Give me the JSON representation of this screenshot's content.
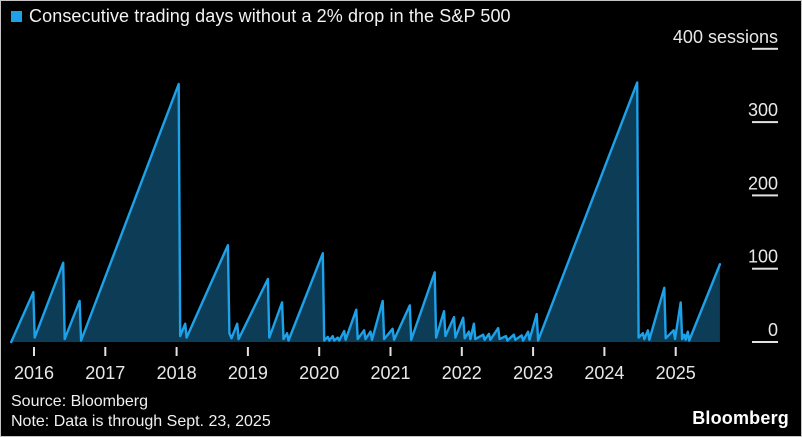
{
  "frame": {
    "background": "#000000",
    "border_color": "#c4c4c4"
  },
  "legend": {
    "marker_color": "#1da1e8",
    "label": "Consecutive trading days without a 2% drop in the S&P 500"
  },
  "source": {
    "line1": "Source: Bloomberg",
    "line2": "Note: Data is through Sept. 23, 2025"
  },
  "branding": {
    "logo": "Bloomberg"
  },
  "chart_data": {
    "type": "area",
    "title": "Consecutive trading days without a 2% drop in the S&P 500",
    "xlabel": "",
    "ylabel": "sessions",
    "xlim": [
      2015.67,
      2025.65
    ],
    "ylim": [
      0,
      400
    ],
    "grid": false,
    "legend_position": "top-left",
    "line_color": "#1da1e8",
    "fill_color": "#0d3c57",
    "tick_color": "#e2e2e2",
    "x_ticks": [
      2016,
      2017,
      2018,
      2019,
      2020,
      2021,
      2022,
      2023,
      2024,
      2025
    ],
    "y_ticks": [
      {
        "value": 0,
        "label": "0"
      },
      {
        "value": 100,
        "label": "100"
      },
      {
        "value": 200,
        "label": "200"
      },
      {
        "value": 300,
        "label": "300"
      },
      {
        "value": 400,
        "label": "400 sessions"
      }
    ],
    "series": [
      {
        "name": "Consecutive trading days without a 2% drop in the S&P 500",
        "units": "sessions",
        "points": [
          [
            2015.68,
            0
          ],
          [
            2015.99,
            68
          ],
          [
            2016.01,
            6
          ],
          [
            2016.41,
            108
          ],
          [
            2016.43,
            4
          ],
          [
            2016.64,
            56
          ],
          [
            2016.66,
            2
          ],
          [
            2018.03,
            352
          ],
          [
            2018.05,
            8
          ],
          [
            2018.12,
            25
          ],
          [
            2018.14,
            6
          ],
          [
            2018.72,
            132
          ],
          [
            2018.74,
            12
          ],
          [
            2018.77,
            5
          ],
          [
            2018.85,
            25
          ],
          [
            2018.87,
            4
          ],
          [
            2019.28,
            86
          ],
          [
            2019.3,
            6
          ],
          [
            2019.48,
            54
          ],
          [
            2019.5,
            4
          ],
          [
            2019.55,
            12
          ],
          [
            2019.57,
            2
          ],
          [
            2020.05,
            121
          ],
          [
            2020.07,
            2
          ],
          [
            2020.12,
            7
          ],
          [
            2020.14,
            2
          ],
          [
            2020.19,
            8
          ],
          [
            2020.21,
            2
          ],
          [
            2020.26,
            6
          ],
          [
            2020.28,
            2
          ],
          [
            2020.35,
            15
          ],
          [
            2020.37,
            3
          ],
          [
            2020.52,
            44
          ],
          [
            2020.54,
            4
          ],
          [
            2020.63,
            16
          ],
          [
            2020.65,
            4
          ],
          [
            2020.72,
            14
          ],
          [
            2020.74,
            3
          ],
          [
            2020.89,
            56
          ],
          [
            2020.91,
            4
          ],
          [
            2021.03,
            18
          ],
          [
            2021.05,
            3
          ],
          [
            2021.27,
            50
          ],
          [
            2021.29,
            3
          ],
          [
            2021.62,
            95
          ],
          [
            2021.64,
            6
          ],
          [
            2021.75,
            42
          ],
          [
            2021.77,
            8
          ],
          [
            2021.89,
            34
          ],
          [
            2021.91,
            6
          ],
          [
            2022.02,
            33
          ],
          [
            2022.04,
            5
          ],
          [
            2022.1,
            14
          ],
          [
            2022.12,
            4
          ],
          [
            2022.17,
            25
          ],
          [
            2022.19,
            4
          ],
          [
            2022.3,
            10
          ],
          [
            2022.32,
            3
          ],
          [
            2022.38,
            11
          ],
          [
            2022.4,
            3
          ],
          [
            2022.51,
            19
          ],
          [
            2022.53,
            4
          ],
          [
            2022.62,
            8
          ],
          [
            2022.64,
            2
          ],
          [
            2022.73,
            10
          ],
          [
            2022.75,
            3
          ],
          [
            2022.84,
            9
          ],
          [
            2022.86,
            2
          ],
          [
            2022.93,
            14
          ],
          [
            2022.95,
            3
          ],
          [
            2023.05,
            38
          ],
          [
            2023.07,
            2
          ],
          [
            2024.46,
            354
          ],
          [
            2024.48,
            6
          ],
          [
            2024.54,
            12
          ],
          [
            2024.56,
            4
          ],
          [
            2024.61,
            16
          ],
          [
            2024.63,
            3
          ],
          [
            2024.84,
            74
          ],
          [
            2024.86,
            5
          ],
          [
            2024.97,
            16
          ],
          [
            2024.99,
            4
          ],
          [
            2025.07,
            54
          ],
          [
            2025.09,
            4
          ],
          [
            2025.12,
            10
          ],
          [
            2025.14,
            3
          ],
          [
            2025.17,
            14
          ],
          [
            2025.19,
            2
          ],
          [
            2025.62,
            106
          ]
        ]
      }
    ]
  }
}
